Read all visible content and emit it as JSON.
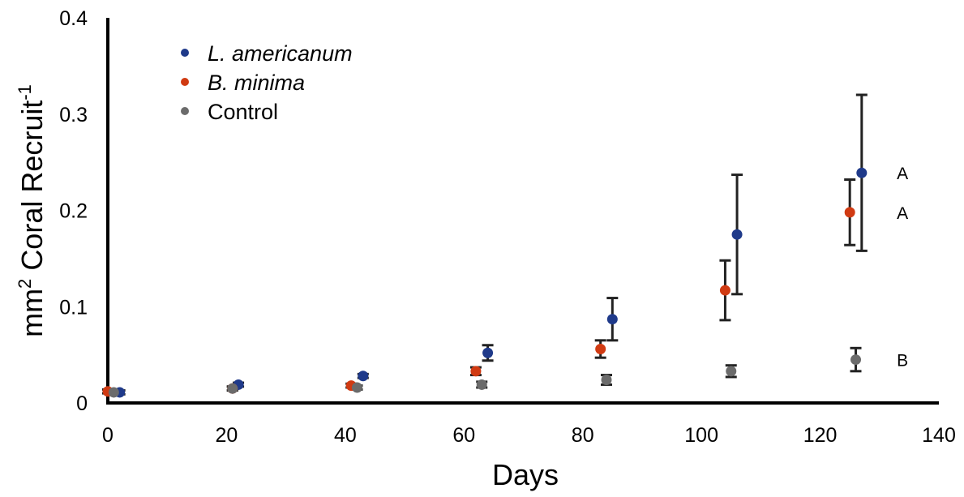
{
  "chart_data": {
    "type": "scatter",
    "title": "",
    "xlabel": "Days",
    "ylabel_main": "mm",
    "ylabel_sup1": "2",
    "ylabel_rest": " Coral Recruit",
    "ylabel_sup2": "-1",
    "xlim": [
      0,
      140
    ],
    "ylim": [
      0,
      0.4
    ],
    "xticks": [
      "0",
      "20",
      "40",
      "60",
      "80",
      "100",
      "120",
      "140"
    ],
    "yticks": [
      "0",
      "0.1",
      "0.2",
      "0.3",
      "0.4"
    ],
    "grid": false,
    "legend_position": "top-left",
    "series": [
      {
        "name": "L. americanum",
        "italic": true,
        "color": "#1f3a8a",
        "points": [
          {
            "x": 2,
            "y": 0.011,
            "err": 0.002
          },
          {
            "x": 22,
            "y": 0.019,
            "err": 0.002
          },
          {
            "x": 43,
            "y": 0.028,
            "err": 0.002
          },
          {
            "x": 64,
            "y": 0.052,
            "err": 0.008
          },
          {
            "x": 85,
            "y": 0.087,
            "err": 0.022
          },
          {
            "x": 106,
            "y": 0.175,
            "err": 0.062
          },
          {
            "x": 127,
            "y": 0.239,
            "err": 0.081
          }
        ]
      },
      {
        "name": "B. minima",
        "italic": true,
        "color": "#d03a12",
        "points": [
          {
            "x": 0,
            "y": 0.012,
            "err": 0.002
          },
          {
            "x": 21,
            "y": 0.015,
            "err": 0.002
          },
          {
            "x": 41,
            "y": 0.018,
            "err": 0.002
          },
          {
            "x": 62,
            "y": 0.033,
            "err": 0.004
          },
          {
            "x": 83,
            "y": 0.056,
            "err": 0.009
          },
          {
            "x": 104,
            "y": 0.117,
            "err": 0.031
          },
          {
            "x": 125,
            "y": 0.198,
            "err": 0.034
          }
        ]
      },
      {
        "name": "Control",
        "italic": false,
        "color": "#6b6b6b",
        "points": [
          {
            "x": 1,
            "y": 0.011,
            "err": 0.002
          },
          {
            "x": 21,
            "y": 0.015,
            "err": 0.002
          },
          {
            "x": 42,
            "y": 0.016,
            "err": 0.002
          },
          {
            "x": 63,
            "y": 0.019,
            "err": 0.003
          },
          {
            "x": 84,
            "y": 0.024,
            "err": 0.005
          },
          {
            "x": 105,
            "y": 0.033,
            "err": 0.006
          },
          {
            "x": 126,
            "y": 0.045,
            "err": 0.012
          }
        ]
      }
    ],
    "annotations": [
      {
        "text": "A",
        "x": 131,
        "y": 0.239
      },
      {
        "text": "A",
        "x": 131,
        "y": 0.198
      },
      {
        "text": "B",
        "x": 131,
        "y": 0.045
      }
    ]
  }
}
